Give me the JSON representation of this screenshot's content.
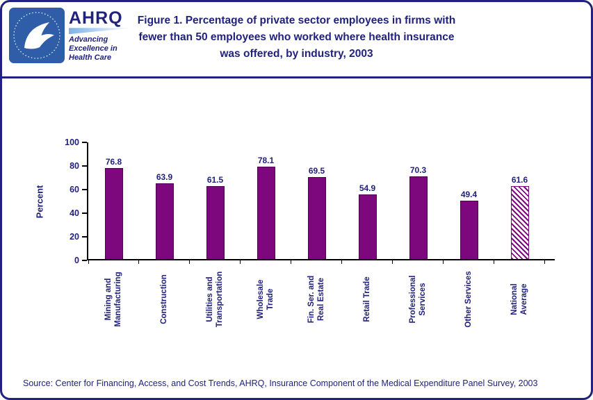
{
  "header": {
    "title": "Figure 1. Percentage of private sector employees in firms with fewer than 50 employees who worked where health insurance was offered, by industry, 2003",
    "ahrq": {
      "acronym": "AHRQ",
      "tagline_lines": [
        "Advancing",
        "Excellence in",
        "Health Care"
      ]
    }
  },
  "chart_data": {
    "type": "bar",
    "title": "Figure 1. Percentage of private sector employees in firms with fewer than 50 employees who worked where health insurance was offered, by industry, 2003",
    "xlabel": "",
    "ylabel": "Percent",
    "ylim": [
      0,
      100
    ],
    "yticks": [
      100,
      80,
      60,
      40,
      20,
      0
    ],
    "grid": false,
    "legend": "none",
    "categories": [
      "Mining and Manufacturing",
      "Construction",
      "Utilities and Transportation",
      "Wholesale Trade",
      "Fin. Ser. and Real Estate",
      "Retail Trade",
      "Professional Services",
      "Other Services",
      "National Average"
    ],
    "label_lines": [
      [
        "Mining and",
        "Manufacturing"
      ],
      [
        "Construction"
      ],
      [
        "Utilities and",
        "Transportation"
      ],
      [
        "Wholesale",
        "Trade"
      ],
      [
        "Fin. Ser. and",
        "Real Estate"
      ],
      [
        "Retail Trade"
      ],
      [
        "Professional",
        "Services"
      ],
      [
        "Other Services"
      ],
      [
        "National",
        "Average"
      ]
    ],
    "values": [
      76.8,
      63.9,
      61.5,
      78.1,
      69.5,
      54.9,
      70.3,
      49.4,
      61.6
    ],
    "bar_styles": [
      "solid",
      "solid",
      "solid",
      "solid",
      "solid",
      "solid",
      "solid",
      "solid",
      "hatched"
    ],
    "bar_color": "#7D087D",
    "hatch_note": "National Average bar is hatched"
  },
  "source": "Source: Center for Financing, Access, and Cost Trends, AHRQ, Insurance Component of the Medical Expenditure Panel Survey, 2003",
  "colors": {
    "navy": "#21217E",
    "purple": "#7D087D",
    "axis": "#000000"
  }
}
